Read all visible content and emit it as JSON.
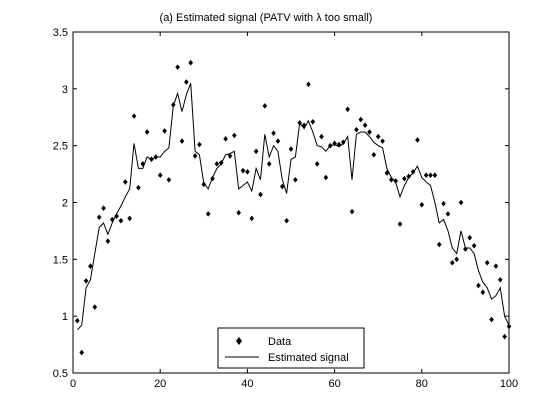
{
  "chart_data": {
    "type": "scatter",
    "title": "(a) Estimated signal (PATV with  λ too small)",
    "xlabel": "",
    "ylabel": "",
    "xlim": [
      0,
      100
    ],
    "ylim": [
      0.5,
      3.5
    ],
    "xticks": [
      0,
      20,
      40,
      60,
      80,
      100
    ],
    "yticks": [
      0.5,
      1,
      1.5,
      2,
      2.5,
      3,
      3.5
    ],
    "xtick_labels": [
      "0",
      "20",
      "40",
      "60",
      "80",
      "100"
    ],
    "ytick_labels": [
      "0.5",
      "1",
      "1.5",
      "2",
      "2.5",
      "3",
      "3.5"
    ],
    "grid": false,
    "legend_position": "bottom-center",
    "series": [
      {
        "name": "Data",
        "marker": "diamond",
        "color": "#000000",
        "x": [
          1,
          2,
          3,
          4,
          5,
          6,
          7,
          8,
          9,
          10,
          11,
          12,
          13,
          14,
          15,
          16,
          17,
          18,
          19,
          20,
          21,
          22,
          23,
          24,
          25,
          26,
          27,
          28,
          29,
          30,
          31,
          32,
          33,
          34,
          35,
          36,
          37,
          38,
          39,
          40,
          41,
          42,
          43,
          44,
          45,
          46,
          47,
          48,
          49,
          50,
          51,
          52,
          53,
          54,
          55,
          56,
          57,
          58,
          59,
          60,
          61,
          62,
          63,
          64,
          65,
          66,
          67,
          68,
          69,
          70,
          71,
          72,
          73,
          74,
          75,
          76,
          77,
          78,
          79,
          80,
          81,
          82,
          83,
          84,
          85,
          86,
          87,
          88,
          89,
          90,
          91,
          92,
          93,
          94,
          95,
          96,
          97,
          98,
          99,
          100
        ],
        "y": [
          0.96,
          0.68,
          1.31,
          1.44,
          1.08,
          1.87,
          1.95,
          1.66,
          1.85,
          1.88,
          1.84,
          2.18,
          1.86,
          2.76,
          2.13,
          2.34,
          2.62,
          2.38,
          2.4,
          2.24,
          2.63,
          2.2,
          2.86,
          3.19,
          2.54,
          3.06,
          3.23,
          2.41,
          2.51,
          2.16,
          1.9,
          2.21,
          2.34,
          2.35,
          2.56,
          2.41,
          2.59,
          1.91,
          2.28,
          2.27,
          1.86,
          2.45,
          2.07,
          2.85,
          2.34,
          2.61,
          2.54,
          2.14,
          1.84,
          2.47,
          2.2,
          2.7,
          2.68,
          3.04,
          2.71,
          2.34,
          2.58,
          2.22,
          2.5,
          2.52,
          2.51,
          2.53,
          2.82,
          1.92,
          2.64,
          2.73,
          2.68,
          2.62,
          2.42,
          2.58,
          2.54,
          2.26,
          2.2,
          2.19,
          1.81,
          2.21,
          2.23,
          2.27,
          2.55,
          1.98,
          2.24,
          2.24,
          2.24,
          1.63,
          1.99,
          1.9,
          1.47,
          1.5,
          2.0,
          1.59,
          1.69,
          1.62,
          1.27,
          1.21,
          1.47,
          0.97,
          1.44,
          1.32,
          0.82,
          0.91
        ]
      },
      {
        "name": "Estimated signal",
        "style": "line",
        "color": "#000000",
        "x": [
          1,
          2,
          3,
          4,
          5,
          6,
          7,
          8,
          9,
          10,
          11,
          12,
          13,
          14,
          15,
          16,
          17,
          18,
          19,
          20,
          21,
          22,
          23,
          24,
          25,
          26,
          27,
          28,
          29,
          30,
          31,
          32,
          33,
          34,
          35,
          36,
          37,
          38,
          39,
          40,
          41,
          42,
          43,
          44,
          45,
          46,
          47,
          48,
          49,
          50,
          51,
          52,
          53,
          54,
          55,
          56,
          57,
          58,
          59,
          60,
          61,
          62,
          63,
          64,
          65,
          66,
          67,
          68,
          69,
          70,
          71,
          72,
          73,
          74,
          75,
          76,
          77,
          78,
          79,
          80,
          81,
          82,
          83,
          84,
          85,
          86,
          87,
          88,
          89,
          90,
          91,
          92,
          93,
          94,
          95,
          96,
          97,
          98,
          99,
          100
        ],
        "y": [
          0.88,
          0.92,
          1.25,
          1.32,
          1.55,
          1.78,
          1.82,
          1.72,
          1.82,
          1.9,
          1.97,
          2.05,
          2.12,
          2.52,
          2.3,
          2.3,
          2.4,
          2.38,
          2.4,
          2.4,
          2.45,
          2.48,
          2.85,
          2.96,
          2.8,
          2.95,
          3.05,
          2.45,
          2.42,
          2.17,
          2.12,
          2.22,
          2.3,
          2.34,
          2.42,
          2.43,
          2.45,
          2.12,
          2.15,
          2.18,
          2.1,
          2.3,
          2.2,
          2.6,
          2.4,
          2.5,
          2.45,
          2.2,
          2.08,
          2.38,
          2.4,
          2.7,
          2.65,
          2.72,
          2.62,
          2.5,
          2.49,
          2.45,
          2.5,
          2.51,
          2.49,
          2.52,
          2.58,
          2.2,
          2.6,
          2.62,
          2.62,
          2.58,
          2.53,
          2.5,
          2.48,
          2.3,
          2.22,
          2.18,
          2.05,
          2.15,
          2.22,
          2.26,
          2.32,
          2.22,
          2.18,
          2.15,
          2.0,
          1.82,
          1.85,
          1.75,
          1.6,
          1.55,
          1.75,
          1.6,
          1.6,
          1.55,
          1.4,
          1.3,
          1.25,
          1.15,
          1.18,
          1.25,
          1.0,
          0.92
        ]
      }
    ]
  }
}
